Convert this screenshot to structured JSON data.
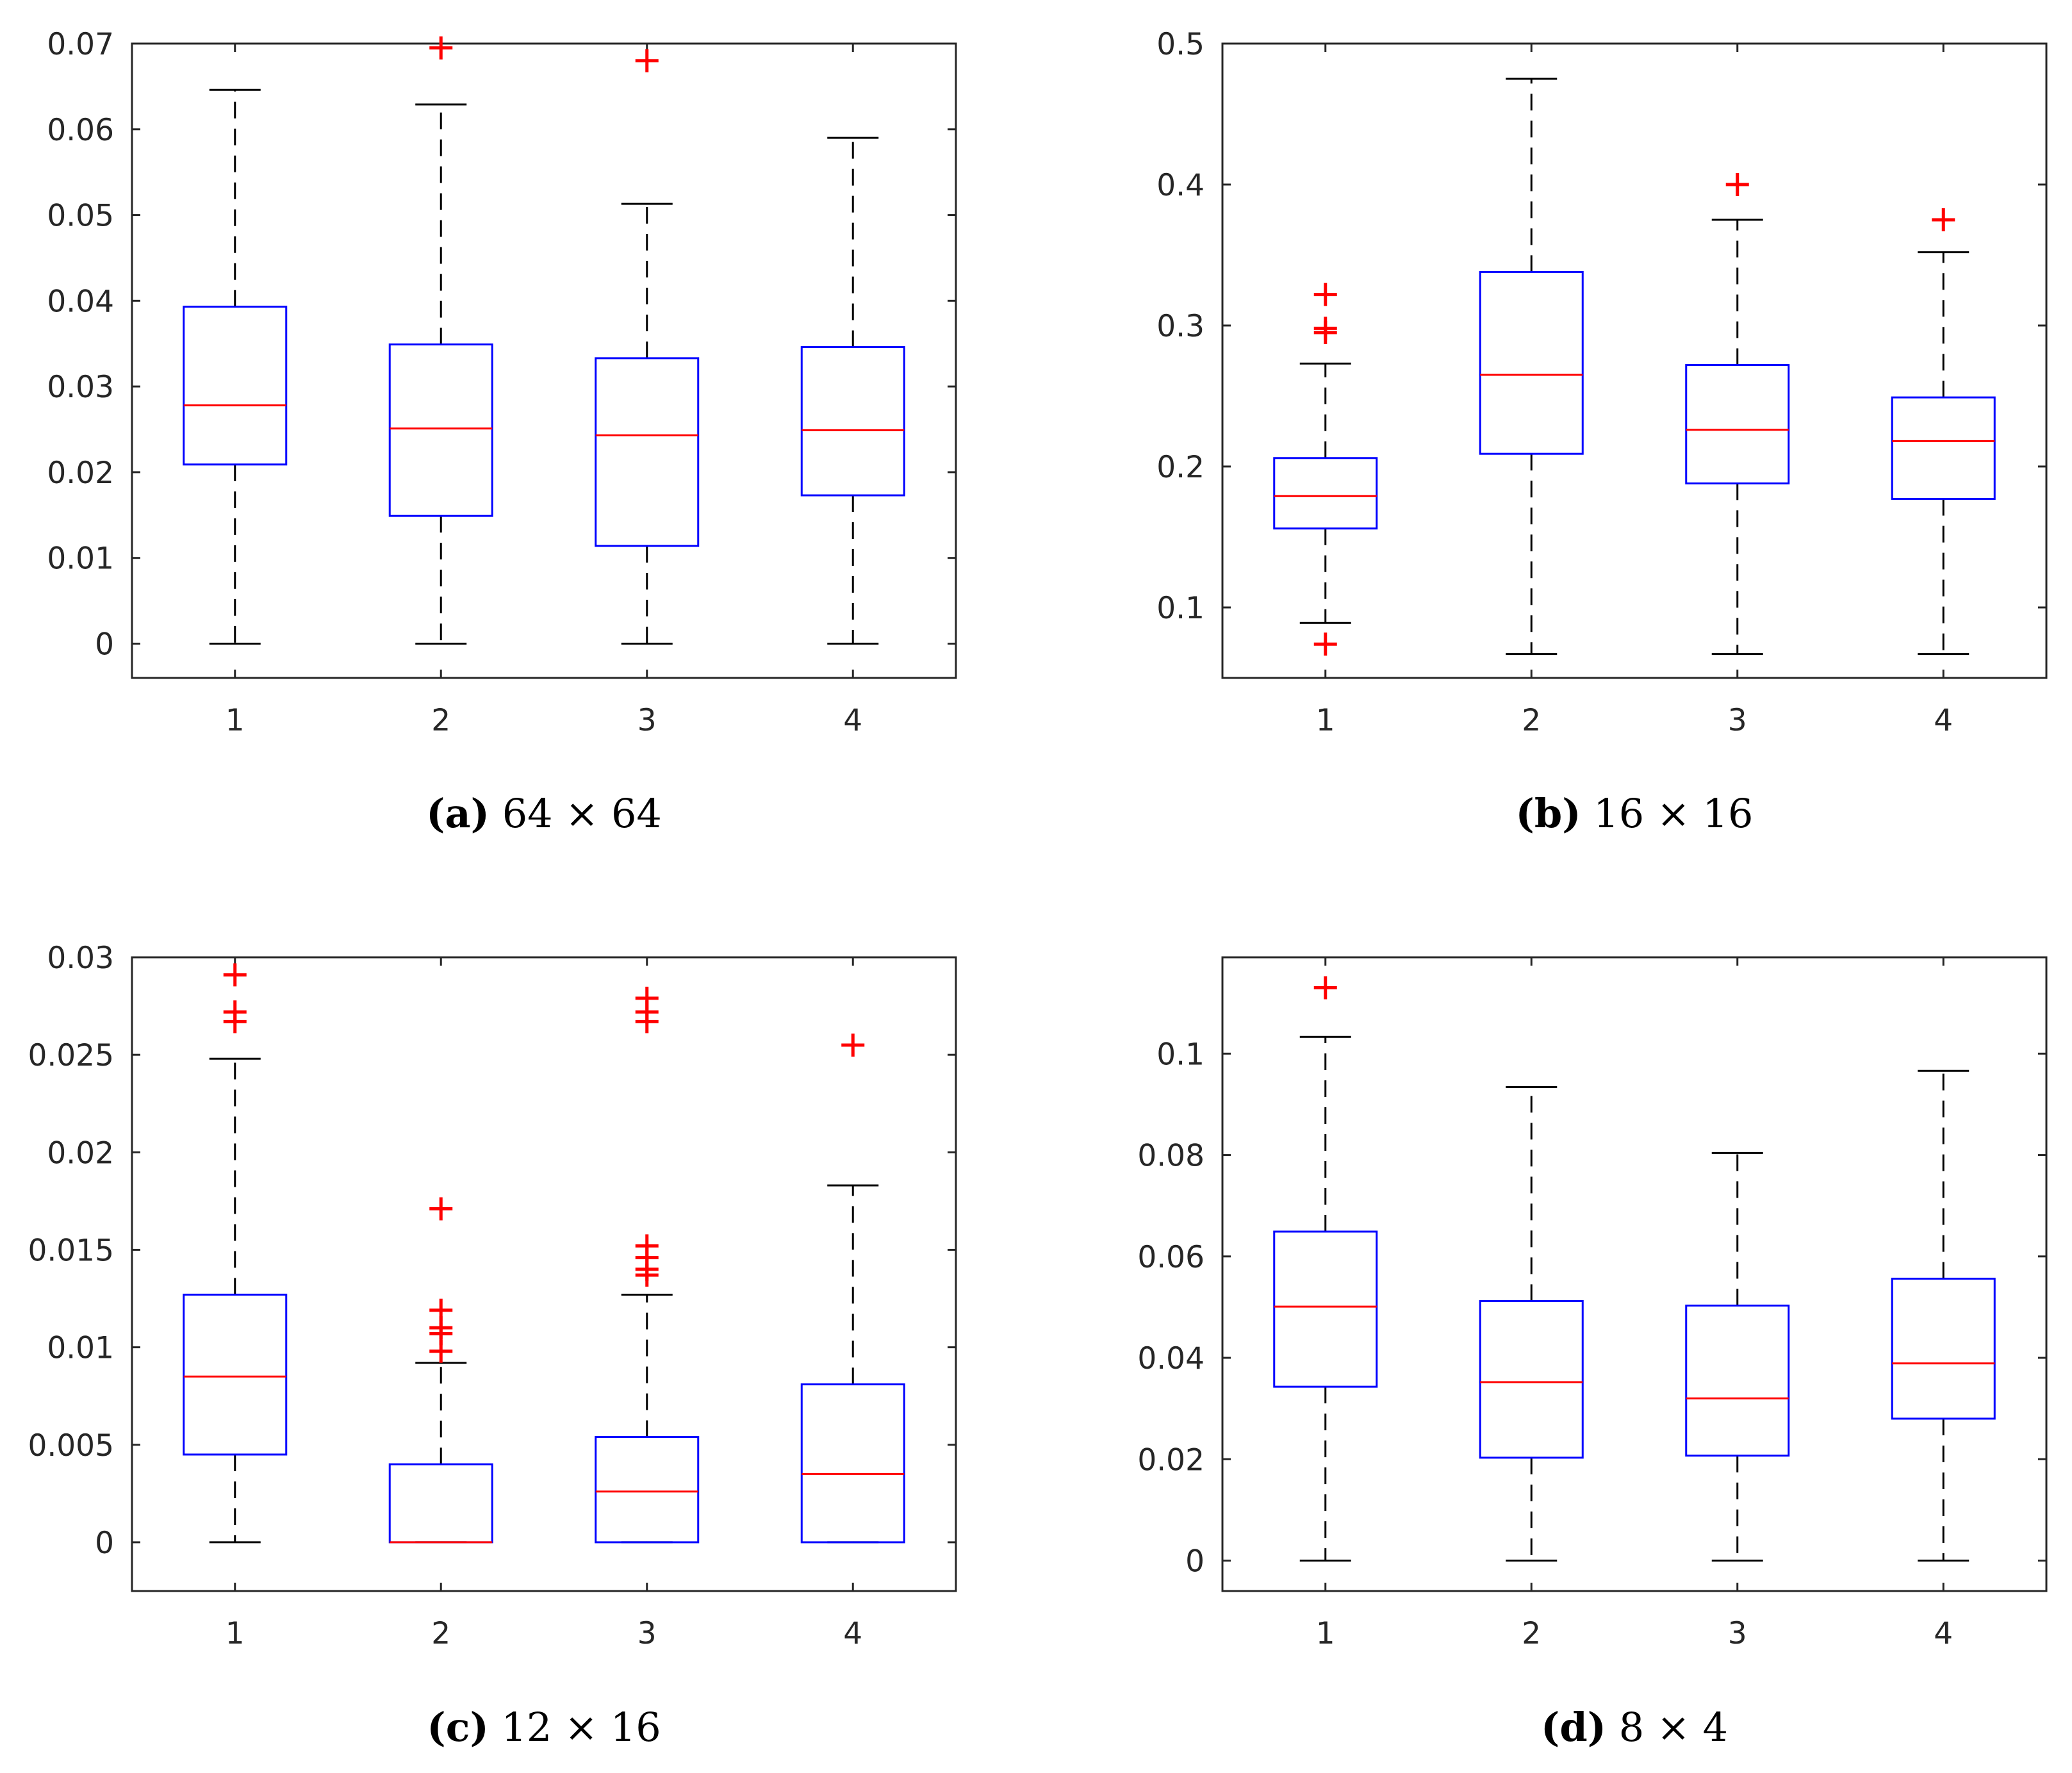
{
  "chart_data": [
    {
      "type": "box",
      "caption_letter": "a",
      "caption_text": "64 × 64",
      "categories": [
        "1",
        "2",
        "3",
        "4"
      ],
      "ylim": [
        -0.004,
        0.07
      ],
      "yticks": [
        "0",
        "0.01",
        "0.02",
        "0.03",
        "0.04",
        "0.05",
        "0.06",
        "0.07"
      ],
      "ytick_values": [
        0,
        0.01,
        0.02,
        0.03,
        0.04,
        0.05,
        0.06,
        0.07
      ],
      "boxes": [
        {
          "whisker_low": 0,
          "q1": 0.0209,
          "median": 0.0278,
          "q3": 0.0393,
          "whisker_high": 0.0646,
          "outliers": []
        },
        {
          "whisker_low": 0,
          "q1": 0.0149,
          "median": 0.0251,
          "q3": 0.0349,
          "whisker_high": 0.0629,
          "outliers": [
            0.0695
          ]
        },
        {
          "whisker_low": 0,
          "q1": 0.0114,
          "median": 0.0243,
          "q3": 0.0333,
          "whisker_high": 0.0513,
          "outliers": [
            0.068
          ]
        },
        {
          "whisker_low": 0,
          "q1": 0.0173,
          "median": 0.0249,
          "q3": 0.0346,
          "whisker_high": 0.059,
          "outliers": []
        }
      ]
    },
    {
      "type": "box",
      "caption_letter": "b",
      "caption_text": "16 × 16",
      "categories": [
        "1",
        "2",
        "3",
        "4"
      ],
      "ylim": [
        0.05,
        0.5
      ],
      "yticks": [
        "0.1",
        "0.2",
        "0.3",
        "0.4",
        "0.5"
      ],
      "ytick_values": [
        0.1,
        0.2,
        0.3,
        0.4,
        0.5
      ],
      "boxes": [
        {
          "whisker_low": 0.089,
          "q1": 0.156,
          "median": 0.179,
          "q3": 0.206,
          "whisker_high": 0.273,
          "outliers": [
            0.074,
            0.295,
            0.298,
            0.322
          ]
        },
        {
          "whisker_low": 0.067,
          "q1": 0.209,
          "median": 0.265,
          "q3": 0.338,
          "whisker_high": 0.475,
          "outliers": []
        },
        {
          "whisker_low": 0.067,
          "q1": 0.188,
          "median": 0.226,
          "q3": 0.272,
          "whisker_high": 0.375,
          "outliers": [
            0.4
          ]
        },
        {
          "whisker_low": 0.067,
          "q1": 0.177,
          "median": 0.218,
          "q3": 0.249,
          "whisker_high": 0.352,
          "outliers": [
            0.375
          ]
        }
      ]
    },
    {
      "type": "box",
      "caption_letter": "c",
      "caption_text": "12 × 16",
      "categories": [
        "1",
        "2",
        "3",
        "4"
      ],
      "ylim": [
        -0.0025,
        0.03
      ],
      "yticks": [
        "0",
        "0.005",
        "0.01",
        "0.015",
        "0.02",
        "0.025",
        "0.03"
      ],
      "ytick_values": [
        0,
        0.005,
        0.01,
        0.015,
        0.02,
        0.025,
        0.03
      ],
      "boxes": [
        {
          "whisker_low": 0,
          "q1": 0.0045,
          "median": 0.0085,
          "q3": 0.0127,
          "whisker_high": 0.0248,
          "outliers": [
            0.0267,
            0.0272,
            0.0291
          ]
        },
        {
          "whisker_low": 0,
          "q1": 0,
          "median": 0,
          "q3": 0.004,
          "whisker_high": 0.0092,
          "outliers": [
            0.0098,
            0.0107,
            0.011,
            0.0119,
            0.0171
          ]
        },
        {
          "whisker_low": 0,
          "q1": 0,
          "median": 0.0026,
          "q3": 0.0054,
          "whisker_high": 0.0127,
          "outliers": [
            0.0137,
            0.014,
            0.0146,
            0.0152,
            0.0267,
            0.0272,
            0.0279
          ]
        },
        {
          "whisker_low": 0,
          "q1": 0,
          "median": 0.0035,
          "q3": 0.0081,
          "whisker_high": 0.0183,
          "outliers": [
            0.0255
          ]
        }
      ]
    },
    {
      "type": "box",
      "caption_letter": "d",
      "caption_text": "8 × 4",
      "categories": [
        "1",
        "2",
        "3",
        "4"
      ],
      "ylim": [
        -0.006,
        0.119
      ],
      "yticks": [
        "0",
        "0.02",
        "0.04",
        "0.06",
        "0.08",
        "0.1"
      ],
      "ytick_values": [
        0,
        0.02,
        0.04,
        0.06,
        0.08,
        0.1
      ],
      "boxes": [
        {
          "whisker_low": 0,
          "q1": 0.0343,
          "median": 0.0501,
          "q3": 0.0649,
          "whisker_high": 0.1033,
          "outliers": [
            0.113
          ]
        },
        {
          "whisker_low": 0,
          "q1": 0.0203,
          "median": 0.0352,
          "q3": 0.0512,
          "whisker_high": 0.0934,
          "outliers": []
        },
        {
          "whisker_low": 0,
          "q1": 0.0207,
          "median": 0.032,
          "q3": 0.0503,
          "whisker_high": 0.0804,
          "outliers": []
        },
        {
          "whisker_low": 0,
          "q1": 0.028,
          "median": 0.0389,
          "q3": 0.0556,
          "whisker_high": 0.0966,
          "outliers": []
        }
      ]
    }
  ],
  "colors": {
    "box": "#0000ff",
    "median": "#ff0000",
    "outlier": "#ff0000",
    "whisker": "#000000",
    "axis": "#262626"
  }
}
